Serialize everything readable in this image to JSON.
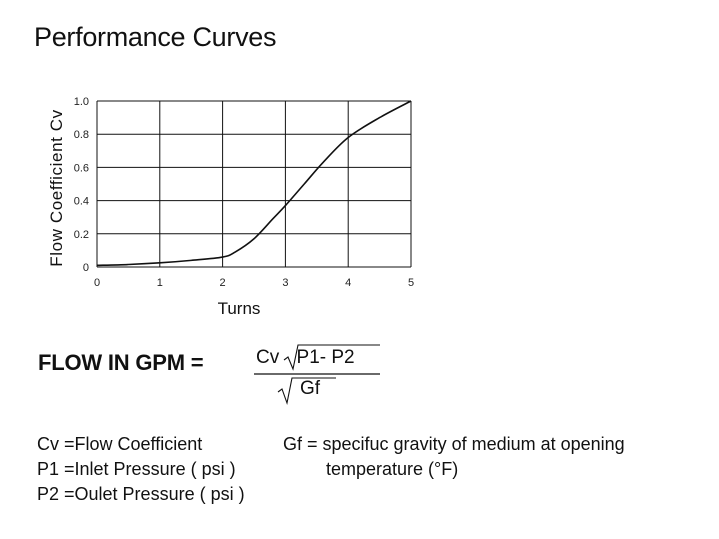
{
  "page": {
    "title": "Performance Curves"
  },
  "chart_data": {
    "type": "line",
    "xlabel": "Turns",
    "ylabel": "Flow Coefficient Cv",
    "xlim": [
      0,
      5
    ],
    "ylim": [
      0,
      1.0
    ],
    "x_ticks": [
      "0",
      "1",
      "2",
      "3",
      "4",
      "5"
    ],
    "y_ticks": [
      "0",
      "0.2",
      "0.4",
      "0.6",
      "0.8",
      "1.0"
    ],
    "grid": true,
    "series": [
      {
        "x": [
          0,
          0.5,
          1,
          1.5,
          2,
          2.2,
          2.5,
          2.8,
          3,
          3.3,
          3.6,
          4,
          4.5,
          5
        ],
        "y": [
          0.01,
          0.015,
          0.025,
          0.04,
          0.06,
          0.09,
          0.17,
          0.29,
          0.37,
          0.5,
          0.63,
          0.78,
          0.9,
          1.0
        ]
      }
    ]
  },
  "formula": {
    "label": "FLOW IN GPM =",
    "cv": "Cv",
    "numerator_radicand": "P1- P2",
    "denominator_radicand": "Gf"
  },
  "definitions": {
    "left": [
      "Cv =Flow Coefficient",
      "P1 =Inlet Pressure ( psi )",
      "P2 =Oulet Pressure ( psi )"
    ],
    "right": [
      "Gf = specifuc gravity of medium at opening",
      "temperature (°F)"
    ]
  }
}
